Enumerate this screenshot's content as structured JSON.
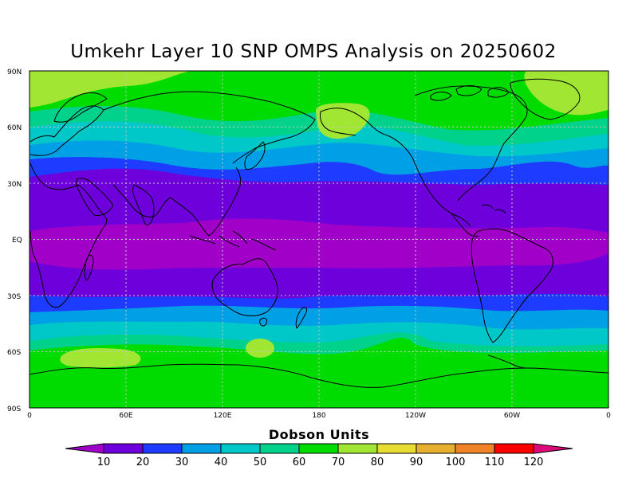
{
  "title": "Umkehr Layer 10 SNP OMPS Analysis on 20250602",
  "lat_labels": [
    "90N",
    "60N",
    "30N",
    "EQ",
    "30S",
    "60S",
    "90S"
  ],
  "lon_labels": [
    "0",
    "60E",
    "120E",
    "180",
    "120W",
    "60W",
    "0"
  ],
  "colorbar": {
    "title": "Dobson Units",
    "labels": [
      "10",
      "20",
      "30",
      "40",
      "50",
      "60",
      "70",
      "80",
      "90",
      "100",
      "110",
      "120"
    ],
    "colors": [
      "#a000c8",
      "#6e00dc",
      "#1e3cff",
      "#00a0e6",
      "#00c8c8",
      "#00d28c",
      "#00dc00",
      "#a0e632",
      "#e6dc32",
      "#e6af2d",
      "#f08228",
      "#fa0000",
      "#dc0a78"
    ]
  },
  "chart_data": {
    "type": "heatmap",
    "title": "Umkehr Layer 10 SNP OMPS Analysis on 20250602",
    "units": "Dobson Units",
    "xlim": [
      0,
      360
    ],
    "ylim": [
      -90,
      90
    ],
    "x_ticks": [
      "0",
      "60E",
      "120E",
      "180",
      "120W",
      "60W",
      "0"
    ],
    "y_ticks": [
      "90N",
      "60N",
      "30N",
      "EQ",
      "30S",
      "60S",
      "90S"
    ],
    "levels": [
      10,
      20,
      30,
      40,
      50,
      60,
      70,
      80,
      90,
      100,
      110,
      120
    ],
    "zonal_profile": [
      {
        "lat": 90,
        "value": 72
      },
      {
        "lat": 75,
        "value": 70
      },
      {
        "lat": 62,
        "value": 63
      },
      {
        "lat": 52,
        "value": 55
      },
      {
        "lat": 45,
        "value": 45
      },
      {
        "lat": 38,
        "value": 35
      },
      {
        "lat": 30,
        "value": 25
      },
      {
        "lat": 15,
        "value": 15
      },
      {
        "lat": 0,
        "value": 8
      },
      {
        "lat": -15,
        "value": 12
      },
      {
        "lat": -28,
        "value": 19
      },
      {
        "lat": -35,
        "value": 27
      },
      {
        "lat": -42,
        "value": 36
      },
      {
        "lat": -48,
        "value": 45
      },
      {
        "lat": -55,
        "value": 56
      },
      {
        "lat": -62,
        "value": 66
      },
      {
        "lat": -90,
        "value": 70
      }
    ],
    "features": [
      {
        "lon": 175,
        "lat": 61,
        "value": 75
      },
      {
        "lon": 340,
        "lat": 75,
        "value": 75
      },
      {
        "lon": 20,
        "lat": 80,
        "value": 73
      },
      {
        "lon": 30,
        "lat": -62,
        "value": 75
      },
      {
        "lon": 150,
        "lat": -57,
        "value": 75
      }
    ],
    "grid": true
  }
}
